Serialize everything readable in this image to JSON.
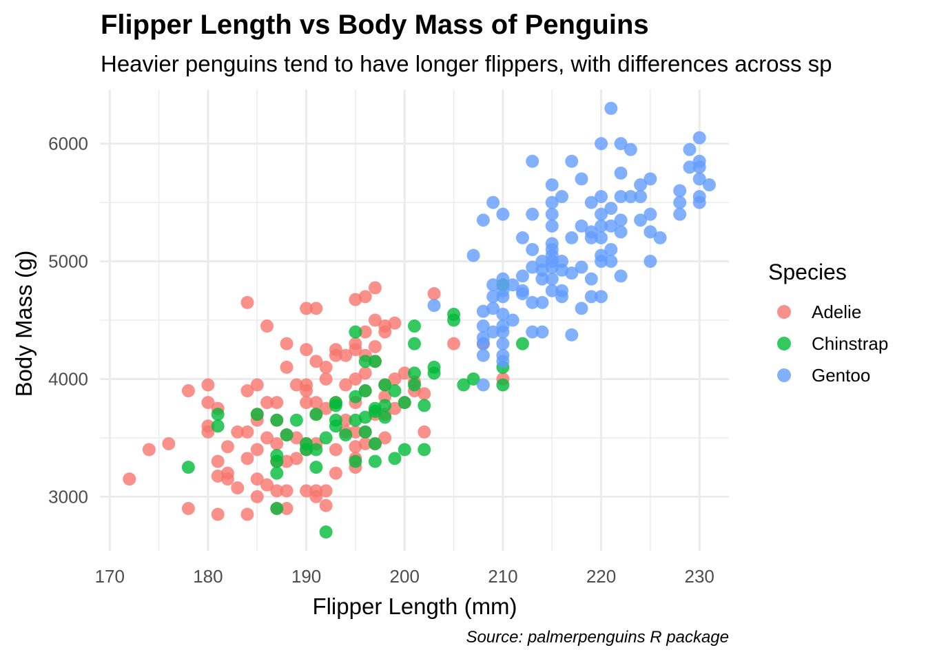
{
  "chart_data": {
    "type": "scatter",
    "title": "Flipper Length vs Body Mass of Penguins",
    "subtitle": "Heavier penguins tend to have longer flippers, with differences across sp",
    "caption": "Source: palmerpenguins R package",
    "xlabel": "Flipper Length (mm)",
    "ylabel": "Body Mass (g)",
    "xlim": [
      169,
      233
    ],
    "ylim": [
      2540,
      6460
    ],
    "xticks": [
      170,
      180,
      190,
      200,
      210,
      220,
      230
    ],
    "yticks": [
      3000,
      4000,
      5000,
      6000
    ],
    "grid": true,
    "legend": {
      "title": "Species",
      "position": "right"
    },
    "series": [
      {
        "name": "Adelie",
        "color": "#F8766D",
        "points": [
          [
            172,
            3150
          ],
          [
            174,
            3400
          ],
          [
            176,
            3450
          ],
          [
            178,
            3900
          ],
          [
            178,
            2900
          ],
          [
            180,
            3950
          ],
          [
            180,
            3800
          ],
          [
            180,
            3600
          ],
          [
            180,
            3550
          ],
          [
            181,
            3750
          ],
          [
            181,
            3300
          ],
          [
            181,
            3175
          ],
          [
            181,
            2850
          ],
          [
            182,
            3425
          ],
          [
            182,
            3200
          ],
          [
            182,
            3150
          ],
          [
            183,
            3550
          ],
          [
            183,
            3075
          ],
          [
            184,
            4650
          ],
          [
            184,
            3900
          ],
          [
            184,
            3550
          ],
          [
            184,
            3325
          ],
          [
            184,
            2850
          ],
          [
            185,
            3950
          ],
          [
            185,
            3700
          ],
          [
            185,
            3650
          ],
          [
            185,
            3400
          ],
          [
            185,
            3150
          ],
          [
            185,
            3000
          ],
          [
            186,
            4450
          ],
          [
            186,
            3800
          ],
          [
            186,
            3500
          ],
          [
            186,
            3100
          ],
          [
            187,
            3800
          ],
          [
            187,
            3650
          ],
          [
            187,
            3450
          ],
          [
            187,
            3300
          ],
          [
            187,
            3050
          ],
          [
            187,
            2900
          ],
          [
            188,
            4300
          ],
          [
            188,
            4100
          ],
          [
            188,
            3525
          ],
          [
            188,
            3300
          ],
          [
            188,
            3050
          ],
          [
            188,
            2900
          ],
          [
            189,
            3950
          ],
          [
            189,
            3500
          ],
          [
            189,
            3325
          ],
          [
            190,
            4600
          ],
          [
            190,
            4250
          ],
          [
            190,
            3950
          ],
          [
            190,
            3900
          ],
          [
            190,
            3800
          ],
          [
            190,
            3450
          ],
          [
            190,
            3400
          ],
          [
            190,
            3050
          ],
          [
            191,
            4600
          ],
          [
            191,
            4150
          ],
          [
            191,
            3800
          ],
          [
            191,
            3700
          ],
          [
            191,
            3450
          ],
          [
            191,
            3050
          ],
          [
            191,
            3000
          ],
          [
            192,
            4100
          ],
          [
            192,
            4000
          ],
          [
            192,
            3750
          ],
          [
            192,
            3050
          ],
          [
            192,
            2925
          ],
          [
            193,
            4250
          ],
          [
            193,
            4200
          ],
          [
            193,
            3800
          ],
          [
            193,
            3400
          ],
          [
            193,
            3200
          ],
          [
            194,
            4200
          ],
          [
            194,
            3950
          ],
          [
            194,
            3650
          ],
          [
            194,
            3550
          ],
          [
            195,
            4675
          ],
          [
            195,
            4300
          ],
          [
            195,
            4250
          ],
          [
            195,
            4000
          ],
          [
            195,
            3800
          ],
          [
            195,
            3550
          ],
          [
            195,
            3425
          ],
          [
            195,
            3325
          ],
          [
            195,
            3250
          ],
          [
            196,
            4700
          ],
          [
            196,
            4400
          ],
          [
            196,
            4200
          ],
          [
            196,
            4050
          ],
          [
            196,
            3900
          ],
          [
            196,
            3550
          ],
          [
            196,
            3450
          ],
          [
            197,
            4775
          ],
          [
            197,
            4500
          ],
          [
            197,
            4275
          ],
          [
            197,
            4150
          ],
          [
            197,
            3700
          ],
          [
            197,
            3450
          ],
          [
            198,
            4450
          ],
          [
            198,
            4400
          ],
          [
            198,
            3950
          ],
          [
            198,
            3850
          ],
          [
            198,
            3700
          ],
          [
            198,
            3500
          ],
          [
            199,
            4475
          ],
          [
            199,
            4000
          ],
          [
            199,
            3750
          ],
          [
            200,
            4050
          ],
          [
            200,
            3800
          ],
          [
            201,
            3975
          ],
          [
            201,
            3900
          ],
          [
            202,
            3875
          ],
          [
            202,
            3550
          ],
          [
            203,
            4725
          ],
          [
            205,
            4300
          ],
          [
            208,
            4300
          ],
          [
            210,
            4000
          ]
        ]
      },
      {
        "name": "Chinstrap",
        "color": "#00BA38",
        "points": [
          [
            178,
            3250
          ],
          [
            181,
            3700
          ],
          [
            181,
            3600
          ],
          [
            185,
            3700
          ],
          [
            187,
            3650
          ],
          [
            187,
            3350
          ],
          [
            187,
            3300
          ],
          [
            187,
            3200
          ],
          [
            187,
            2900
          ],
          [
            188,
            3525
          ],
          [
            189,
            3650
          ],
          [
            190,
            3450
          ],
          [
            190,
            3400
          ],
          [
            191,
            3700
          ],
          [
            191,
            3400
          ],
          [
            191,
            3250
          ],
          [
            192,
            3500
          ],
          [
            192,
            2700
          ],
          [
            193,
            3800
          ],
          [
            193,
            3775
          ],
          [
            193,
            3650
          ],
          [
            193,
            3600
          ],
          [
            194,
            3525
          ],
          [
            195,
            4400
          ],
          [
            195,
            3850
          ],
          [
            195,
            3650
          ],
          [
            195,
            3300
          ],
          [
            196,
            4150
          ],
          [
            196,
            3900
          ],
          [
            196,
            3675
          ],
          [
            196,
            3550
          ],
          [
            197,
            4150
          ],
          [
            197,
            3750
          ],
          [
            197,
            3725
          ],
          [
            197,
            3450
          ],
          [
            197,
            3300
          ],
          [
            198,
            3950
          ],
          [
            198,
            3775
          ],
          [
            198,
            3675
          ],
          [
            199,
            3900
          ],
          [
            199,
            3325
          ],
          [
            200,
            3800
          ],
          [
            200,
            3400
          ],
          [
            201,
            4450
          ],
          [
            201,
            4300
          ],
          [
            201,
            4050
          ],
          [
            201,
            3950
          ],
          [
            202,
            3775
          ],
          [
            202,
            3400
          ],
          [
            203,
            4100
          ],
          [
            203,
            4050
          ],
          [
            205,
            4550
          ],
          [
            205,
            4500
          ],
          [
            206,
            3950
          ],
          [
            207,
            4000
          ],
          [
            210,
            4800
          ],
          [
            210,
            4100
          ],
          [
            210,
            3950
          ],
          [
            212,
            4300
          ]
        ]
      },
      {
        "name": "Gentoo",
        "color": "#619CFF",
        "points": [
          [
            203,
            4625
          ],
          [
            207,
            5050
          ],
          [
            208,
            5350
          ],
          [
            208,
            4575
          ],
          [
            208,
            4450
          ],
          [
            208,
            4350
          ],
          [
            208,
            4300
          ],
          [
            208,
            4200
          ],
          [
            208,
            3950
          ],
          [
            209,
            5500
          ],
          [
            209,
            4800
          ],
          [
            209,
            4700
          ],
          [
            209,
            4600
          ],
          [
            209,
            4400
          ],
          [
            210,
            5400
          ],
          [
            210,
            4850
          ],
          [
            210,
            4750
          ],
          [
            210,
            4700
          ],
          [
            210,
            4550
          ],
          [
            210,
            4450
          ],
          [
            210,
            4400
          ],
          [
            210,
            4300
          ],
          [
            210,
            4200
          ],
          [
            210,
            4150
          ],
          [
            211,
            4800
          ],
          [
            211,
            4500
          ],
          [
            212,
            5200
          ],
          [
            212,
            4875
          ],
          [
            212,
            4750
          ],
          [
            212,
            4725
          ],
          [
            213,
            5850
          ],
          [
            213,
            5400
          ],
          [
            213,
            5100
          ],
          [
            213,
            4950
          ],
          [
            213,
            4650
          ],
          [
            213,
            4400
          ],
          [
            214,
            5000
          ],
          [
            214,
            4925
          ],
          [
            214,
            4850
          ],
          [
            214,
            4650
          ],
          [
            214,
            4400
          ],
          [
            215,
            5650
          ],
          [
            215,
            5500
          ],
          [
            215,
            5400
          ],
          [
            215,
            5300
          ],
          [
            215,
            5150
          ],
          [
            215,
            5100
          ],
          [
            215,
            5050
          ],
          [
            215,
            5000
          ],
          [
            215,
            4950
          ],
          [
            215,
            4850
          ],
          [
            215,
            4750
          ],
          [
            216,
            5550
          ],
          [
            216,
            5000
          ],
          [
            216,
            4925
          ],
          [
            216,
            4750
          ],
          [
            216,
            4700
          ],
          [
            217,
            5850
          ],
          [
            217,
            5200
          ],
          [
            217,
            4900
          ],
          [
            217,
            4375
          ],
          [
            218,
            5700
          ],
          [
            218,
            5300
          ],
          [
            218,
            4950
          ],
          [
            218,
            4600
          ],
          [
            219,
            5500
          ],
          [
            219,
            5250
          ],
          [
            219,
            5200
          ],
          [
            219,
            4850
          ],
          [
            219,
            4700
          ],
          [
            220,
            6000
          ],
          [
            220,
            5550
          ],
          [
            220,
            5400
          ],
          [
            220,
            5300
          ],
          [
            220,
            5200
          ],
          [
            220,
            5050
          ],
          [
            220,
            5000
          ],
          [
            220,
            4700
          ],
          [
            221,
            6300
          ],
          [
            221,
            5450
          ],
          [
            221,
            5300
          ],
          [
            221,
            5100
          ],
          [
            221,
            5000
          ],
          [
            222,
            6000
          ],
          [
            222,
            5750
          ],
          [
            222,
            5550
          ],
          [
            222,
            5350
          ],
          [
            222,
            5250
          ],
          [
            222,
            4875
          ],
          [
            223,
            5950
          ],
          [
            223,
            5550
          ],
          [
            224,
            5650
          ],
          [
            224,
            5550
          ],
          [
            224,
            5350
          ],
          [
            225,
            5700
          ],
          [
            225,
            5400
          ],
          [
            225,
            5250
          ],
          [
            225,
            5000
          ],
          [
            226,
            5200
          ],
          [
            228,
            5600
          ],
          [
            228,
            5500
          ],
          [
            228,
            5400
          ],
          [
            229,
            5950
          ],
          [
            229,
            5800
          ],
          [
            230,
            6050
          ],
          [
            230,
            5850
          ],
          [
            230,
            5800
          ],
          [
            230,
            5700
          ],
          [
            230,
            5550
          ],
          [
            230,
            5500
          ],
          [
            231,
            5650
          ]
        ]
      }
    ]
  }
}
